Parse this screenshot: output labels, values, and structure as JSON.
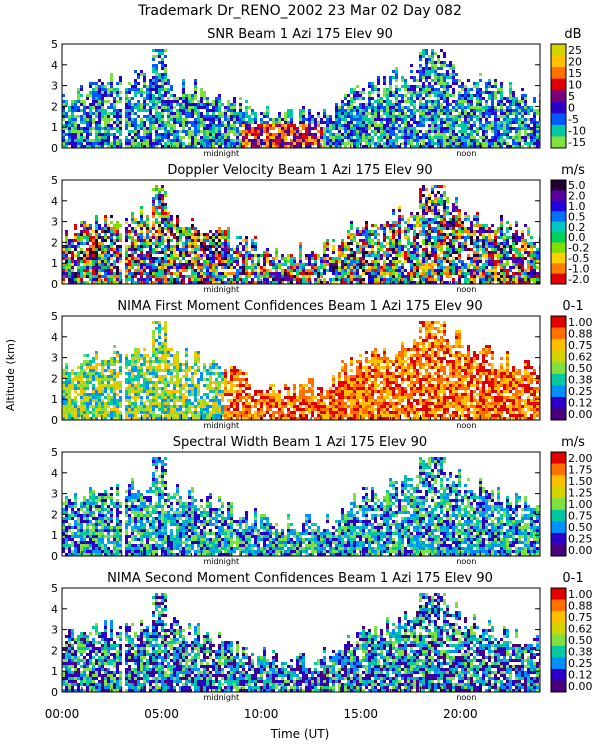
{
  "header": {
    "title": "Trademark Dr_RENO_2002  23 Mar 02 Day 082"
  },
  "axes": {
    "ylabel": "Altitude (km)",
    "xlabel": "Time (UT)",
    "xticks": [
      "00:00",
      "05:00",
      "10:00",
      "15:00",
      "20:00"
    ],
    "yticks": [
      "0",
      "1",
      "2",
      "3",
      "4",
      "5"
    ],
    "marker_midnight": "midnight",
    "marker_noon": "noon"
  },
  "chart_data": [
    {
      "type": "heatmap",
      "title": "SNR Beam 1 Azi 175 Elev 90",
      "unit": "dB",
      "scale_labels": [
        "25",
        "20",
        "15",
        "10",
        "5",
        "0",
        "-5",
        "-10",
        "-15"
      ],
      "colors": [
        "#d4d400",
        "#ffc000",
        "#ff7000",
        "#e00000",
        "#7a007a",
        "#2a00c8",
        "#0058ff",
        "#00c8a0",
        "#80e040"
      ],
      "xlim": [
        0,
        24
      ],
      "ylim": [
        0,
        5
      ],
      "xlabel": "Time (UT)",
      "ylabel": "Altitude (km)"
    },
    {
      "type": "heatmap",
      "title": "Doppler Velocity Beam 1 Azi 175 Elev 90",
      "unit": "m/s",
      "scale_labels": [
        "5.0",
        "2.0",
        "1.0",
        "0.5",
        "0.2",
        "0.0",
        "-0.2",
        "-0.5",
        "-1.0",
        "-2.0"
      ],
      "colors": [
        "#200030",
        "#5a00a0",
        "#2000e0",
        "#0070ff",
        "#00c8c0",
        "#00d060",
        "#80e000",
        "#ffd000",
        "#ff8000",
        "#e00000"
      ],
      "xlim": [
        0,
        24
      ],
      "ylim": [
        0,
        5
      ],
      "xlabel": "Time (UT)",
      "ylabel": "Altitude (km)"
    },
    {
      "type": "heatmap",
      "title": "NIMA First Moment Confidences Beam 1 Azi 175 Elev 90",
      "unit": "0-1",
      "scale_labels": [
        "1.00",
        "0.88",
        "0.75",
        "0.62",
        "0.50",
        "0.38",
        "0.25",
        "0.12",
        "0.00"
      ],
      "colors": [
        "#e00000",
        "#ff7000",
        "#ffc000",
        "#d4d400",
        "#80e040",
        "#00c8a0",
        "#0090ff",
        "#2a00c8",
        "#4a007a"
      ],
      "xlim": [
        0,
        24
      ],
      "ylim": [
        0,
        5
      ],
      "xlabel": "Time (UT)",
      "ylabel": "Altitude (km)"
    },
    {
      "type": "heatmap",
      "title": "Spectral Width Beam 1 Azi 175 Elev 90",
      "unit": "m/s",
      "scale_labels": [
        "2.00",
        "1.75",
        "1.50",
        "1.25",
        "1.00",
        "0.75",
        "0.50",
        "0.25",
        "0.00"
      ],
      "colors": [
        "#e00000",
        "#ff7000",
        "#ffc000",
        "#d4d400",
        "#80e040",
        "#00c8a0",
        "#0090ff",
        "#2a00c8",
        "#4a007a"
      ],
      "xlim": [
        0,
        24
      ],
      "ylim": [
        0,
        5
      ],
      "xlabel": "Time (UT)",
      "ylabel": "Altitude (km)"
    },
    {
      "type": "heatmap",
      "title": "NIMA Second Moment Confidences Beam 1 Azi 175 Elev 90",
      "unit": "0-1",
      "scale_labels": [
        "1.00",
        "0.88",
        "0.75",
        "0.62",
        "0.50",
        "0.38",
        "0.25",
        "0.12",
        "0.00"
      ],
      "colors": [
        "#e00000",
        "#ff7000",
        "#ffc000",
        "#d4d400",
        "#80e040",
        "#00c8a0",
        "#0090ff",
        "#2a00c8",
        "#4a007a"
      ],
      "xlim": [
        0,
        24
      ],
      "ylim": [
        0,
        5
      ],
      "xlabel": "Time (UT)",
      "ylabel": "Altitude (km)"
    }
  ]
}
